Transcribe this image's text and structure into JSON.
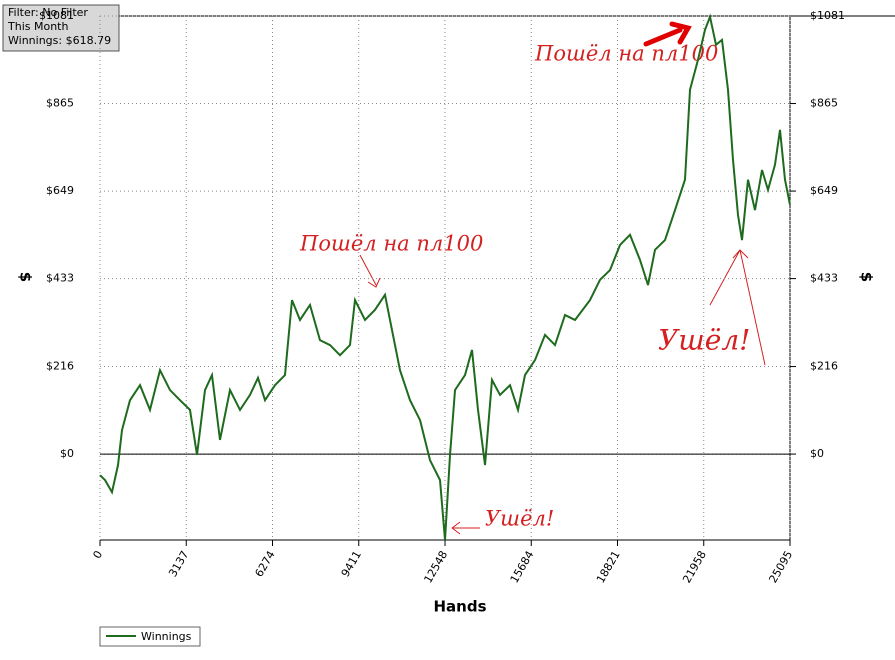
{
  "chart_data": {
    "type": "line",
    "info": [
      "Filter: No Filter",
      "This Month",
      "Winnings: $618.79"
    ],
    "xlabel": "Hands",
    "ylabel": "$",
    "annotations": [
      "Пошёл на пл100",
      "Пошёл на пл100",
      "Ушёл!",
      "Ушёл!"
    ],
    "xlim": [
      0,
      25095
    ],
    "xticks": [
      0,
      3137,
      6274,
      9411,
      12548,
      15684,
      18821,
      21958,
      25095
    ],
    "ylim": [
      -212,
      1081
    ],
    "yticks": [
      {
        "value": 0,
        "label": "$0"
      },
      {
        "value": 216,
        "label": "$216"
      },
      {
        "value": 433,
        "label": "$433"
      },
      {
        "value": 649,
        "label": "$649"
      },
      {
        "value": 865,
        "label": "$865"
      },
      {
        "value": 1081,
        "label": "$1081"
      }
    ],
    "grid": true,
    "series": [
      {
        "name": "Winnings",
        "color": "#1e6b1e",
        "x": [
          0,
          182,
          436,
          655,
          800,
          1091,
          1455,
          1818,
          2182,
          2546,
          2910,
          3273,
          3528,
          3819,
          4073,
          4364,
          4728,
          5092,
          5455,
          5746,
          6001,
          6364,
          6728,
          6983,
          7274,
          7637,
          8001,
          8365,
          8729,
          9092,
          9274,
          9638,
          10002,
          10365,
          10620,
          10911,
          11275,
          11639,
          12002,
          12366,
          12548,
          12730,
          12912,
          13275,
          13530,
          13748,
          14003,
          14257,
          14548,
          14912,
          15203,
          15457,
          15821,
          16185,
          16548,
          16912,
          17276,
          17821,
          18185,
          18549,
          18913,
          19276,
          19640,
          19931,
          20185,
          20549,
          20913,
          21276,
          21458,
          21749,
          22004,
          22186,
          22404,
          22622,
          22840,
          23022,
          23204,
          23349,
          23568,
          23822,
          24077,
          24295,
          24549,
          24731,
          24913,
          25095
        ],
        "values": [
          -52,
          -64,
          -94,
          -27,
          59,
          133,
          170,
          109,
          207,
          158,
          133,
          109,
          -2,
          158,
          195,
          35,
          158,
          109,
          146,
          188,
          133,
          170,
          195,
          380,
          331,
          368,
          281,
          269,
          244,
          269,
          380,
          331,
          356,
          393,
          306,
          207,
          133,
          84,
          -15,
          -64,
          -212,
          -2,
          158,
          195,
          257,
          109,
          -27,
          183,
          146,
          170,
          109,
          195,
          232,
          294,
          269,
          343,
          331,
          380,
          430,
          454,
          516,
          541,
          479,
          417,
          504,
          528,
          602,
          677,
          899,
          973,
          1047,
          1079,
          1010,
          1022,
          899,
          726,
          590,
          528,
          677,
          602,
          701,
          652,
          714,
          800,
          677,
          615
        ]
      }
    ]
  }
}
